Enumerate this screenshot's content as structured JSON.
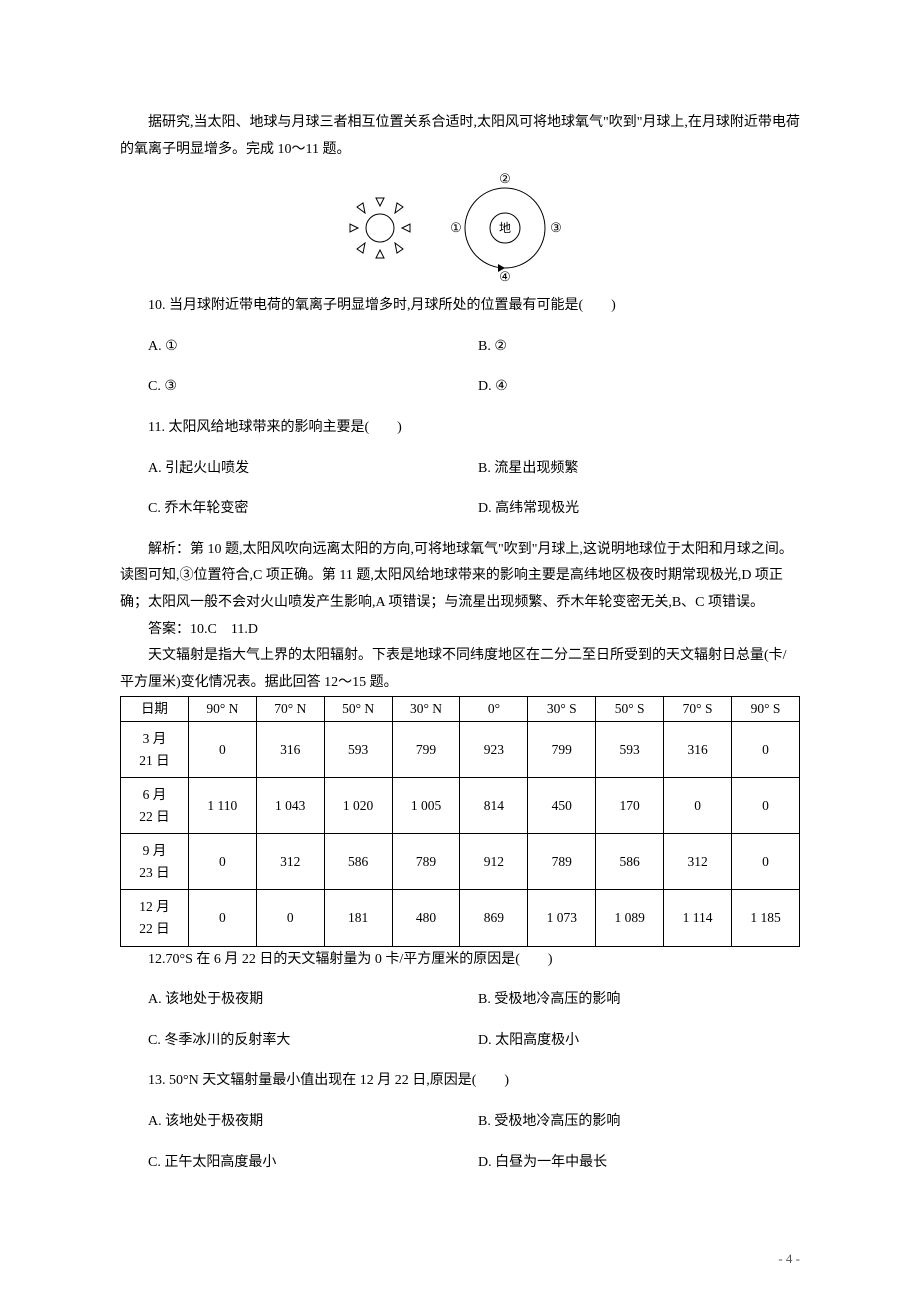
{
  "intro": "据研究,当太阳、地球与月球三者相互位置关系合适时,太阳风可将地球氧气\"吹到\"月球上,在月球附近带电荷的氧离子明显增多。完成 10～11 题。",
  "diagram": {
    "labels": {
      "earth": "地",
      "pos1": "①",
      "pos2": "②",
      "pos3": "③",
      "pos4": "④"
    }
  },
  "q10": {
    "stem": "10. 当月球附近带电荷的氧离子明显增多时,月球所处的位置最有可能是(　　)",
    "A": "A. ①",
    "B": "B. ②",
    "C": "C. ③",
    "D": "D. ④"
  },
  "q11": {
    "stem": "11. 太阳风给地球带来的影响主要是(　　)",
    "A": "A. 引起火山喷发",
    "B": "B. 流星出现频繁",
    "C": "C. 乔木年轮变密",
    "D": "D. 高纬常现极光"
  },
  "exp1": "解析：第 10 题,太阳风吹向远离太阳的方向,可将地球氧气\"吹到\"月球上,这说明地球位于太阳和月球之间。读图可知,③位置符合,C 项正确。第 11 题,太阳风给地球带来的影响主要是高纬地区极夜时期常现极光,D 项正确；太阳风一般不会对火山喷发产生影响,A 项错误；与流星出现频繁、乔木年轮变密无关,B、C 项错误。",
  "ans1": "答案：10.C　11.D",
  "intro2": "天文辐射是指大气上界的太阳辐射。下表是地球不同纬度地区在二分二至日所受到的天文辐射日总量(卡/平方厘米)变化情况表。据此回答 12～15 题。",
  "table": {
    "header": [
      "日期",
      "90° N",
      "70° N",
      "50° N",
      "30° N",
      "0°",
      "30° S",
      "50° S",
      "70° S",
      "90° S"
    ],
    "dates": [
      "3 月\n21 日",
      "6 月\n22 日",
      "9 月\n23 日",
      "12 月\n22 日"
    ],
    "rows": [
      [
        "0",
        "316",
        "593",
        "799",
        "923",
        "799",
        "593",
        "316",
        "0"
      ],
      [
        "1 110",
        "1 043",
        "1 020",
        "1 005",
        "814",
        "450",
        "170",
        "0",
        "0"
      ],
      [
        "0",
        "312",
        "586",
        "789",
        "912",
        "789",
        "586",
        "312",
        "0"
      ],
      [
        "0",
        "0",
        "181",
        "480",
        "869",
        "1 073",
        "1 089",
        "1 114",
        "1 185"
      ]
    ]
  },
  "q12": {
    "stem": "12.70°S 在 6 月 22 日的天文辐射量为 0 卡/平方厘米的原因是(　　)",
    "A": "A. 该地处于极夜期",
    "B": "B. 受极地冷高压的影响",
    "C": "C. 冬季冰川的反射率大",
    "D": "D. 太阳高度极小"
  },
  "q13": {
    "stem": "13. 50°N 天文辐射量最小值出现在 12 月 22 日,原因是(　　)",
    "A": "A. 该地处于极夜期",
    "B": "B. 受极地冷高压的影响",
    "C": "C. 正午太阳高度最小",
    "D": "D. 白昼为一年中最长"
  },
  "footer": "- 4 -"
}
